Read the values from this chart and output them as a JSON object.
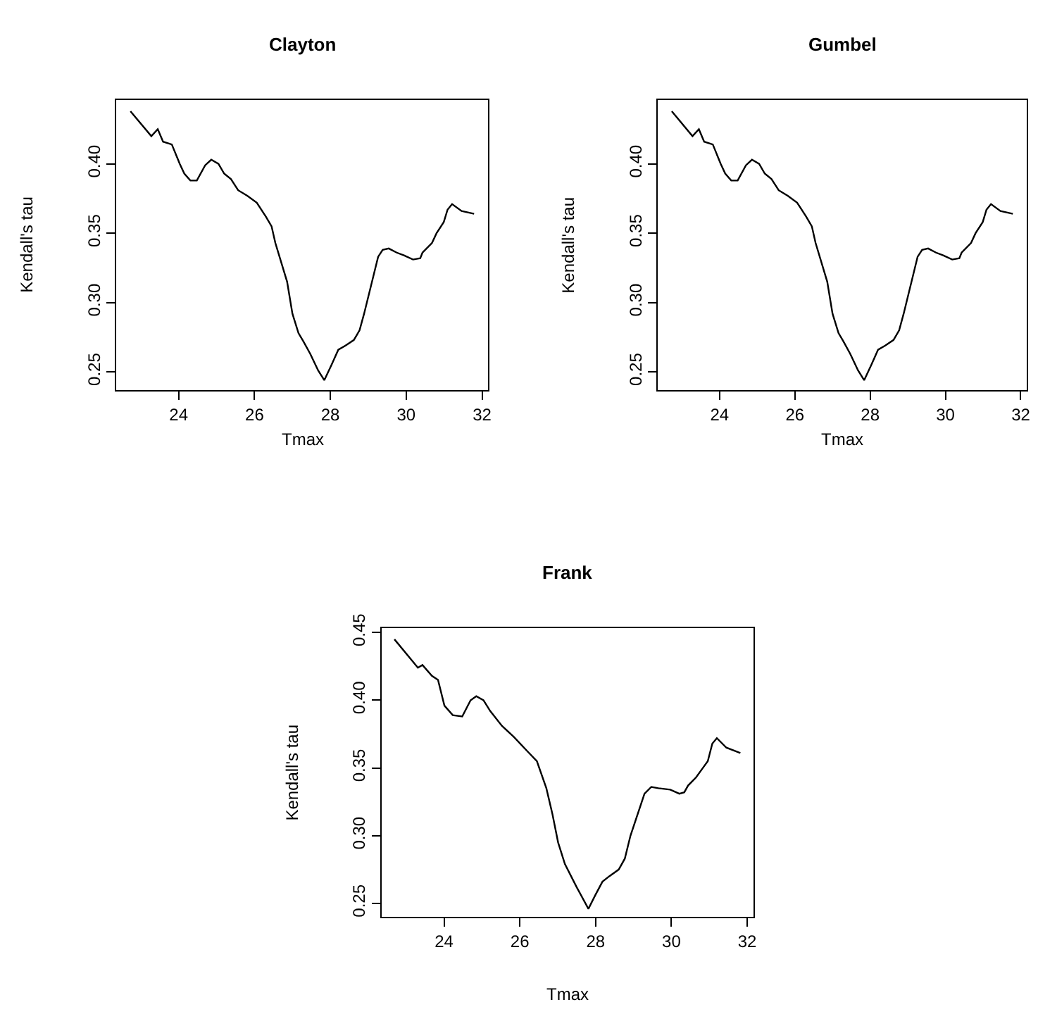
{
  "chart_data": [
    {
      "type": "line",
      "title": "Clayton",
      "xlabel": "Tmax",
      "ylabel": "Kendall's tau",
      "xlim": [
        22.36,
        32.16
      ],
      "ylim": [
        0.237,
        0.446
      ],
      "xticks": [
        24,
        26,
        28,
        30,
        32
      ],
      "yticks": [
        {
          "value": 0.25,
          "label": "0.25"
        },
        {
          "value": 0.3,
          "label": "0.30"
        },
        {
          "value": 0.35,
          "label": "0.35"
        },
        {
          "value": 0.4,
          "label": "0.40"
        }
      ],
      "series": [
        {
          "color": "#000000",
          "x": [
            22.73,
            23.28,
            23.45,
            23.59,
            23.82,
            24.03,
            24.15,
            24.31,
            24.48,
            24.7,
            24.86,
            25.05,
            25.2,
            25.38,
            25.57,
            25.81,
            26.06,
            26.3,
            26.45,
            26.55,
            26.86,
            27.0,
            27.16,
            27.29,
            27.47,
            27.68,
            27.84,
            28.03,
            28.21,
            28.4,
            28.62,
            28.77,
            28.89,
            29.26,
            29.38,
            29.54,
            29.75,
            29.94,
            30.18,
            30.37,
            30.43,
            30.68,
            30.8,
            30.99,
            31.09,
            31.21,
            31.46,
            31.79
          ],
          "values": [
            0.438,
            0.42,
            0.425,
            0.416,
            0.414,
            0.4,
            0.393,
            0.388,
            0.388,
            0.399,
            0.403,
            0.4,
            0.393,
            0.389,
            0.381,
            0.377,
            0.372,
            0.362,
            0.355,
            0.343,
            0.315,
            0.292,
            0.278,
            0.272,
            0.263,
            0.251,
            0.244,
            0.255,
            0.266,
            0.269,
            0.273,
            0.28,
            0.292,
            0.333,
            0.338,
            0.339,
            0.336,
            0.334,
            0.331,
            0.332,
            0.336,
            0.343,
            0.35,
            0.358,
            0.367,
            0.371,
            0.366,
            0.364
          ]
        }
      ]
    },
    {
      "type": "line",
      "title": "Gumbel",
      "xlabel": "Tmax",
      "ylabel": "Kendall's tau",
      "xlim": [
        22.36,
        32.16
      ],
      "ylim": [
        0.237,
        0.446
      ],
      "xticks": [
        24,
        26,
        28,
        30,
        32
      ],
      "yticks": [
        {
          "value": 0.25,
          "label": "0.25"
        },
        {
          "value": 0.3,
          "label": "0.30"
        },
        {
          "value": 0.35,
          "label": "0.35"
        },
        {
          "value": 0.4,
          "label": "0.40"
        }
      ],
      "series": [
        {
          "color": "#000000",
          "x": [
            22.73,
            23.28,
            23.45,
            23.59,
            23.82,
            24.03,
            24.15,
            24.31,
            24.48,
            24.7,
            24.86,
            25.05,
            25.2,
            25.38,
            25.57,
            25.81,
            26.06,
            26.3,
            26.45,
            26.55,
            26.86,
            27.0,
            27.16,
            27.29,
            27.47,
            27.68,
            27.84,
            28.03,
            28.21,
            28.4,
            28.62,
            28.77,
            28.89,
            29.26,
            29.38,
            29.54,
            29.75,
            29.94,
            30.18,
            30.37,
            30.43,
            30.68,
            30.8,
            30.99,
            31.09,
            31.21,
            31.46,
            31.79
          ],
          "values": [
            0.438,
            0.42,
            0.425,
            0.416,
            0.414,
            0.4,
            0.393,
            0.388,
            0.388,
            0.399,
            0.403,
            0.4,
            0.393,
            0.389,
            0.381,
            0.377,
            0.372,
            0.362,
            0.355,
            0.343,
            0.315,
            0.292,
            0.278,
            0.272,
            0.263,
            0.251,
            0.244,
            0.255,
            0.266,
            0.269,
            0.273,
            0.28,
            0.292,
            0.333,
            0.338,
            0.339,
            0.336,
            0.334,
            0.331,
            0.332,
            0.336,
            0.343,
            0.35,
            0.358,
            0.367,
            0.371,
            0.366,
            0.364
          ]
        }
      ]
    },
    {
      "type": "line",
      "title": "Frank",
      "xlabel": "Tmax",
      "ylabel": "Kendall's tau",
      "xlim": [
        22.35,
        32.16
      ],
      "ylim": [
        0.24,
        0.453
      ],
      "xticks": [
        24,
        26,
        28,
        30,
        32
      ],
      "yticks": [
        {
          "value": 0.25,
          "label": "0.25"
        },
        {
          "value": 0.3,
          "label": "0.30"
        },
        {
          "value": 0.35,
          "label": "0.35"
        },
        {
          "value": 0.4,
          "label": "0.40"
        },
        {
          "value": 0.45,
          "label": "0.45"
        }
      ],
      "series": [
        {
          "color": "#000000",
          "x": [
            22.69,
            23.31,
            23.43,
            23.68,
            23.84,
            24.01,
            24.23,
            24.48,
            24.7,
            24.85,
            25.04,
            25.22,
            25.53,
            25.84,
            26.21,
            26.45,
            26.7,
            26.86,
            27.01,
            27.19,
            27.5,
            27.81,
            27.99,
            28.18,
            28.36,
            28.61,
            28.77,
            28.92,
            29.29,
            29.47,
            29.66,
            29.97,
            30.21,
            30.34,
            30.44,
            30.65,
            30.83,
            30.96,
            31.08,
            31.2,
            31.45,
            31.82
          ],
          "values": [
            0.445,
            0.424,
            0.426,
            0.418,
            0.415,
            0.396,
            0.389,
            0.388,
            0.4,
            0.403,
            0.4,
            0.392,
            0.381,
            0.373,
            0.362,
            0.355,
            0.335,
            0.316,
            0.295,
            0.279,
            0.262,
            0.246,
            0.256,
            0.266,
            0.27,
            0.275,
            0.283,
            0.3,
            0.331,
            0.336,
            0.335,
            0.334,
            0.331,
            0.332,
            0.337,
            0.343,
            0.35,
            0.355,
            0.368,
            0.372,
            0.365,
            0.361
          ]
        }
      ]
    }
  ]
}
